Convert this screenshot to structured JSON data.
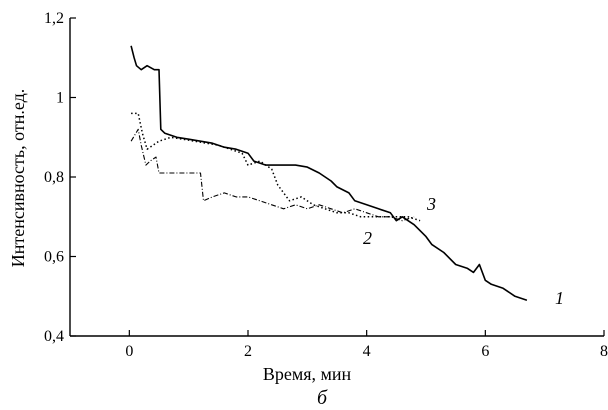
{
  "chart_data": {
    "type": "line",
    "title": "",
    "panel_label": "б",
    "xlabel": "Время, мин",
    "ylabel": "Интенсивность, отн.ед.",
    "xlim": [
      -1,
      8
    ],
    "ylim": [
      0.4,
      1.2
    ],
    "x_ticks": [
      0,
      2,
      4,
      6,
      8
    ],
    "x_tick_labels": [
      "0",
      "2",
      "4",
      "6",
      "8"
    ],
    "y_ticks": [
      0.4,
      0.6,
      0.8,
      1.0,
      1.2
    ],
    "y_tick_labels": [
      "0,4",
      "0,6",
      "0,8",
      "1",
      "1,2"
    ],
    "grid": false,
    "series": [
      {
        "name": "1",
        "style": "solid",
        "color": "#000000",
        "x": [
          0.03,
          0.08,
          0.12,
          0.2,
          0.3,
          0.42,
          0.5,
          0.53,
          0.6,
          0.8,
          1.0,
          1.2,
          1.4,
          1.6,
          1.8,
          2.0,
          2.1,
          2.2,
          2.3,
          2.5,
          2.8,
          3.0,
          3.2,
          3.4,
          3.5,
          3.7,
          3.8,
          4.0,
          4.2,
          4.4,
          4.5,
          4.6,
          4.8,
          5.0,
          5.1,
          5.3,
          5.5,
          5.7,
          5.8,
          5.9,
          6.0,
          6.1,
          6.3,
          6.5,
          6.7
        ],
        "y": [
          1.13,
          1.1,
          1.08,
          1.07,
          1.08,
          1.07,
          1.07,
          0.92,
          0.91,
          0.9,
          0.895,
          0.89,
          0.885,
          0.875,
          0.87,
          0.86,
          0.84,
          0.835,
          0.83,
          0.83,
          0.83,
          0.825,
          0.81,
          0.79,
          0.775,
          0.76,
          0.74,
          0.73,
          0.72,
          0.71,
          0.69,
          0.7,
          0.68,
          0.65,
          0.63,
          0.61,
          0.58,
          0.57,
          0.56,
          0.58,
          0.54,
          0.53,
          0.52,
          0.5,
          0.49
        ]
      },
      {
        "name": "2",
        "style": "dash-dot",
        "color": "#000000",
        "x": [
          0.03,
          0.15,
          0.2,
          0.28,
          0.35,
          0.45,
          0.5,
          0.6,
          0.8,
          1.0,
          1.2,
          1.25,
          1.4,
          1.6,
          1.8,
          2.0,
          2.2,
          2.4,
          2.6,
          2.8,
          3.0,
          3.2,
          3.4,
          3.6,
          3.8,
          4.0,
          4.2,
          4.4,
          4.6,
          4.8
        ],
        "y": [
          0.89,
          0.92,
          0.88,
          0.83,
          0.84,
          0.85,
          0.81,
          0.81,
          0.81,
          0.81,
          0.81,
          0.74,
          0.75,
          0.76,
          0.75,
          0.75,
          0.74,
          0.73,
          0.72,
          0.73,
          0.72,
          0.73,
          0.72,
          0.71,
          0.72,
          0.71,
          0.7,
          0.7,
          0.69,
          0.7
        ]
      },
      {
        "name": "3",
        "style": "dotted",
        "color": "#000000",
        "x": [
          0.03,
          0.15,
          0.22,
          0.3,
          0.5,
          0.7,
          0.9,
          1.1,
          1.3,
          1.5,
          1.7,
          1.9,
          2.0,
          2.2,
          2.4,
          2.5,
          2.7,
          2.9,
          3.1,
          3.3,
          3.5,
          3.7,
          3.9,
          4.1,
          4.3,
          4.5,
          4.7,
          4.9
        ],
        "y": [
          0.96,
          0.96,
          0.91,
          0.87,
          0.89,
          0.9,
          0.895,
          0.89,
          0.885,
          0.88,
          0.87,
          0.86,
          0.83,
          0.84,
          0.82,
          0.78,
          0.74,
          0.75,
          0.73,
          0.72,
          0.71,
          0.71,
          0.7,
          0.7,
          0.7,
          0.7,
          0.7,
          0.69
        ]
      }
    ],
    "series_labels": [
      "1",
      "2",
      "3"
    ]
  }
}
